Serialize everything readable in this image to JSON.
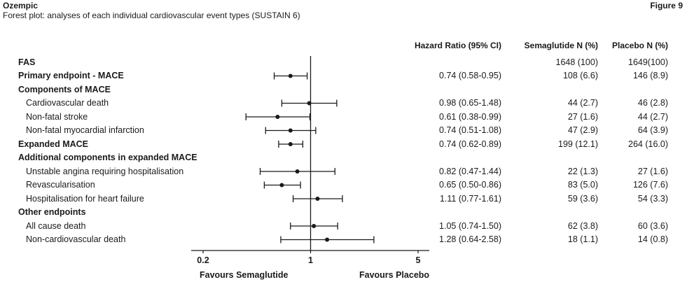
{
  "header": {
    "brand": "Ozempic",
    "subtitle": "Forest plot: analyses of each individual cardiovascular event types (SUSTAIN 6)",
    "figure_label": "Figure 9"
  },
  "columns": {
    "hr": "Hazard Ratio (95% CI)",
    "semaglutide": "Semaglutide N (%)",
    "placebo": "Placebo N (%)"
  },
  "favours": {
    "left": "Favours Semaglutide",
    "right": "Favours Placebo"
  },
  "colors": {
    "ink": "#1a1a1a"
  },
  "chart_data": {
    "type": "forest",
    "xscale": "log",
    "xlim": [
      0.2,
      5
    ],
    "reference_line": 1,
    "ticks": [
      {
        "value": 0.2,
        "label": "0.2"
      },
      {
        "value": 1,
        "label": "1"
      },
      {
        "value": 5,
        "label": "5"
      }
    ],
    "rows": [
      {
        "label": "FAS",
        "bold": true,
        "indent": false,
        "hr_text": "",
        "semaglutide": "1648 (100)",
        "placebo": "1649(100)",
        "estimate": null,
        "lower": null,
        "upper": null
      },
      {
        "label": "Primary endpoint - MACE",
        "bold": true,
        "indent": false,
        "hr_text": "0.74 (0.58-0.95)",
        "semaglutide": "108 (6.6)",
        "placebo": "146 (8.9)",
        "estimate": 0.74,
        "lower": 0.58,
        "upper": 0.95
      },
      {
        "label": "Components of MACE",
        "bold": true,
        "indent": false,
        "hr_text": "",
        "semaglutide": "",
        "placebo": "",
        "estimate": null,
        "lower": null,
        "upper": null
      },
      {
        "label": "Cardiovascular death",
        "bold": false,
        "indent": true,
        "hr_text": "0.98 (0.65-1.48)",
        "semaglutide": "44 (2.7)",
        "placebo": "46 (2.8)",
        "estimate": 0.98,
        "lower": 0.65,
        "upper": 1.48
      },
      {
        "label": "Non-fatal stroke",
        "bold": false,
        "indent": true,
        "hr_text": "0.61 (0.38-0.99)",
        "semaglutide": "27 (1.6)",
        "placebo": "44 (2.7)",
        "estimate": 0.61,
        "lower": 0.38,
        "upper": 0.99
      },
      {
        "label": "Non-fatal myocardial infarction",
        "bold": false,
        "indent": true,
        "hr_text": "0.74 (0.51-1.08)",
        "semaglutide": "47 (2.9)",
        "placebo": "64 (3.9)",
        "estimate": 0.74,
        "lower": 0.51,
        "upper": 1.08
      },
      {
        "label": "Expanded MACE",
        "bold": true,
        "indent": false,
        "hr_text": "0.74 (0.62-0.89)",
        "semaglutide": "199 (12.1)",
        "placebo": "264 (16.0)",
        "estimate": 0.74,
        "lower": 0.62,
        "upper": 0.89
      },
      {
        "label": "Additional components in expanded MACE",
        "bold": true,
        "indent": false,
        "hr_text": "",
        "semaglutide": "",
        "placebo": "",
        "estimate": null,
        "lower": null,
        "upper": null
      },
      {
        "label": "Unstable angina requiring hospitalisation",
        "bold": false,
        "indent": true,
        "hr_text": "0.82 (0.47-1.44)",
        "semaglutide": "22 (1.3)",
        "placebo": "27 (1.6)",
        "estimate": 0.82,
        "lower": 0.47,
        "upper": 1.44
      },
      {
        "label": "Revascularisation",
        "bold": false,
        "indent": true,
        "hr_text": "0.65 (0.50-0.86)",
        "semaglutide": "83 (5.0)",
        "placebo": "126 (7.6)",
        "estimate": 0.65,
        "lower": 0.5,
        "upper": 0.86
      },
      {
        "label": "Hospitalisation for heart failure",
        "bold": false,
        "indent": true,
        "hr_text": "1.11 (0.77-1.61)",
        "semaglutide": "59 (3.6)",
        "placebo": "54 (3.3)",
        "estimate": 1.11,
        "lower": 0.77,
        "upper": 1.61
      },
      {
        "label": "Other endpoints",
        "bold": true,
        "indent": false,
        "hr_text": "",
        "semaglutide": "",
        "placebo": "",
        "estimate": null,
        "lower": null,
        "upper": null
      },
      {
        "label": "All cause death",
        "bold": false,
        "indent": true,
        "hr_text": "1.05 (0.74-1.50)",
        "semaglutide": "62 (3.8)",
        "placebo": "60 (3.6)",
        "estimate": 1.05,
        "lower": 0.74,
        "upper": 1.5
      },
      {
        "label": "Non-cardiovascular death",
        "bold": false,
        "indent": true,
        "hr_text": "1.28 (0.64-2.58)",
        "semaglutide": "18 (1.1)",
        "placebo": "14 (0.8)",
        "estimate": 1.28,
        "lower": 0.64,
        "upper": 2.58
      }
    ]
  }
}
